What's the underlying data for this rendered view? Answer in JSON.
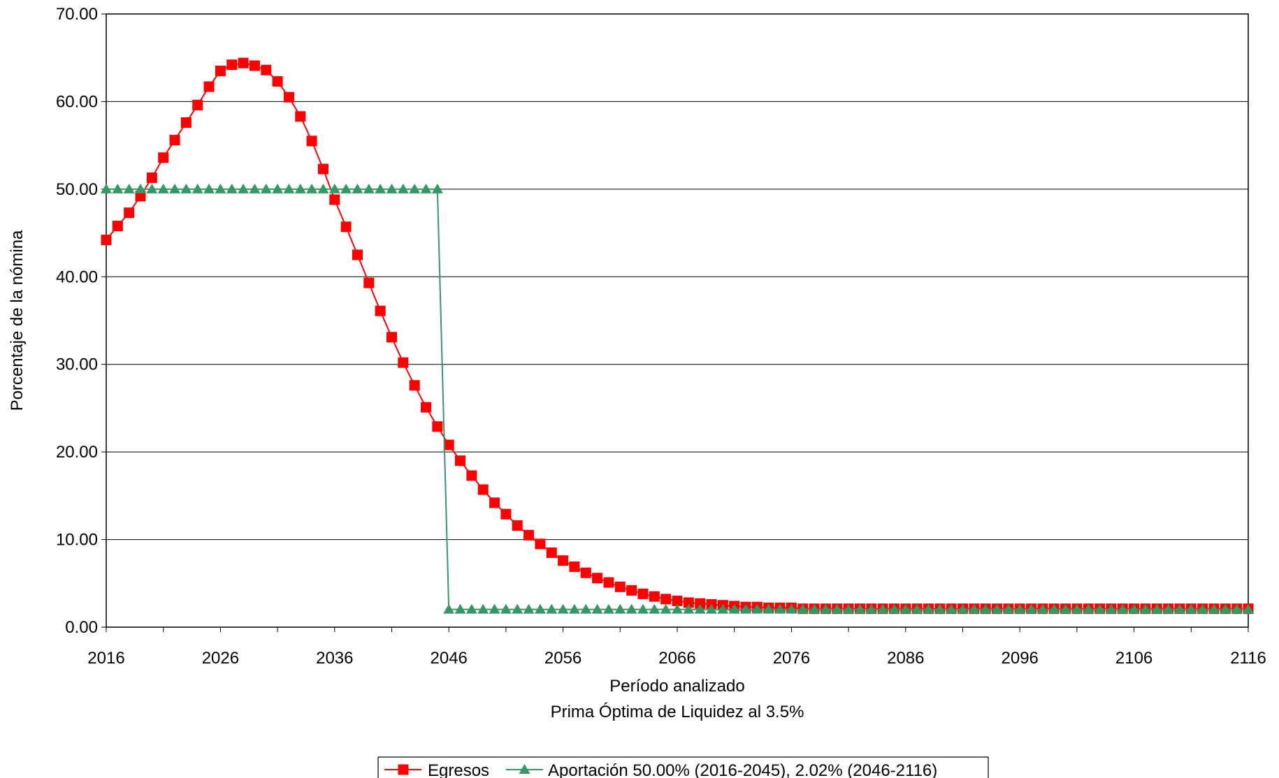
{
  "chart_data": {
    "type": "line",
    "xlabel": "Período analizado",
    "subtitle": "Prima Óptima de Liquidez al 3.5%",
    "ylabel": "Porcentaje de la nómina",
    "xlim": [
      2016,
      2116
    ],
    "ylim": [
      0,
      70
    ],
    "x_ticks": [
      2016,
      2026,
      2036,
      2046,
      2056,
      2066,
      2076,
      2086,
      2096,
      2106,
      2116
    ],
    "y_ticks": [
      0,
      10,
      20,
      30,
      40,
      50,
      60,
      70
    ],
    "y_tick_labels": [
      "0.00",
      "10.00",
      "20.00",
      "30.00",
      "40.00",
      "50.00",
      "60.00",
      "70.00"
    ],
    "grid": "horizontal",
    "legend_position": "bottom",
    "series": [
      {
        "name": "Egresos",
        "color": "#ff0000",
        "marker": "square",
        "start_year": 2016,
        "values": [
          44.2,
          45.8,
          47.3,
          49.2,
          51.3,
          53.6,
          55.6,
          57.6,
          59.6,
          61.7,
          63.5,
          64.2,
          64.4,
          64.1,
          63.6,
          62.3,
          60.5,
          58.3,
          55.5,
          52.3,
          48.8,
          45.7,
          42.5,
          39.3,
          36.1,
          33.1,
          30.2,
          27.6,
          25.1,
          22.9,
          20.8,
          19.0,
          17.3,
          15.7,
          14.2,
          12.9,
          11.6,
          10.5,
          9.5,
          8.5,
          7.6,
          6.9,
          6.2,
          5.6,
          5.1,
          4.6,
          4.2,
          3.8,
          3.5,
          3.2,
          3.0,
          2.8,
          2.7,
          2.6,
          2.5,
          2.4,
          2.3,
          2.3,
          2.2,
          2.2,
          2.2,
          2.1,
          2.1,
          2.1,
          2.1,
          2.1,
          2.1,
          2.1,
          2.1,
          2.1,
          2.1,
          2.1,
          2.1,
          2.1,
          2.1,
          2.1,
          2.1,
          2.1,
          2.1,
          2.1,
          2.1,
          2.1,
          2.1,
          2.1,
          2.1,
          2.1,
          2.1,
          2.1,
          2.1,
          2.1,
          2.1,
          2.1,
          2.1,
          2.1,
          2.1,
          2.1,
          2.1,
          2.1,
          2.1,
          2.1,
          2.1
        ]
      },
      {
        "name": "Aportación 50.00% (2016-2045), 2.02% (2046-2116)",
        "color": "#339966",
        "marker": "triangle",
        "start_year": 2016,
        "values": [
          50,
          50,
          50,
          50,
          50,
          50,
          50,
          50,
          50,
          50,
          50,
          50,
          50,
          50,
          50,
          50,
          50,
          50,
          50,
          50,
          50,
          50,
          50,
          50,
          50,
          50,
          50,
          50,
          50,
          50,
          2.02,
          2.02,
          2.02,
          2.02,
          2.02,
          2.02,
          2.02,
          2.02,
          2.02,
          2.02,
          2.02,
          2.02,
          2.02,
          2.02,
          2.02,
          2.02,
          2.02,
          2.02,
          2.02,
          2.02,
          2.02,
          2.02,
          2.02,
          2.02,
          2.02,
          2.02,
          2.02,
          2.02,
          2.02,
          2.02,
          2.02,
          2.02,
          2.02,
          2.02,
          2.02,
          2.02,
          2.02,
          2.02,
          2.02,
          2.02,
          2.02,
          2.02,
          2.02,
          2.02,
          2.02,
          2.02,
          2.02,
          2.02,
          2.02,
          2.02,
          2.02,
          2.02,
          2.02,
          2.02,
          2.02,
          2.02,
          2.02,
          2.02,
          2.02,
          2.02,
          2.02,
          2.02,
          2.02,
          2.02,
          2.02,
          2.02,
          2.02,
          2.02,
          2.02,
          2.02,
          2.02
        ]
      }
    ]
  }
}
